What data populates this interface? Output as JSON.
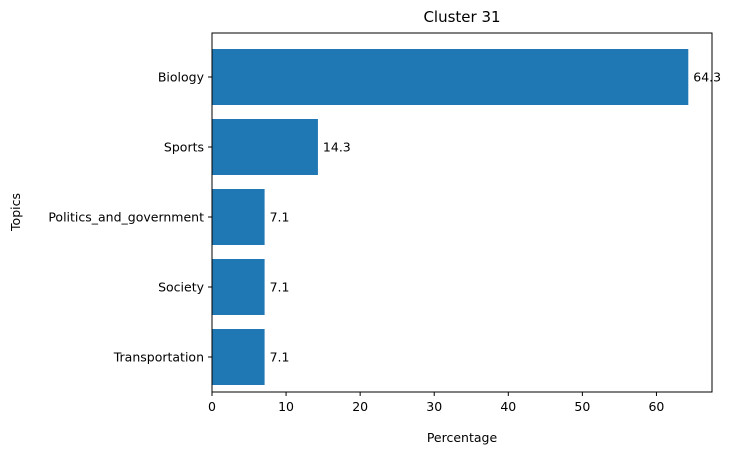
{
  "chart_data": {
    "type": "bar",
    "orientation": "horizontal",
    "title": "Cluster 31",
    "xlabel": "Percentage",
    "ylabel": "Topics",
    "categories": [
      "Biology",
      "Sports",
      "Politics_and_government",
      "Society",
      "Transportation"
    ],
    "values": [
      64.3,
      14.3,
      7.1,
      7.1,
      7.1
    ],
    "data_labels": [
      "64.3",
      "14.3",
      "7.1",
      "7.1",
      "7.1"
    ],
    "xlim": [
      0,
      67.5
    ],
    "xticks": [
      0,
      10,
      20,
      30,
      40,
      50,
      60
    ],
    "xtick_labels": [
      "0",
      "10",
      "20",
      "30",
      "40",
      "50",
      "60"
    ],
    "grid": false,
    "legend": "none",
    "bar_color": "#1f77b4"
  }
}
